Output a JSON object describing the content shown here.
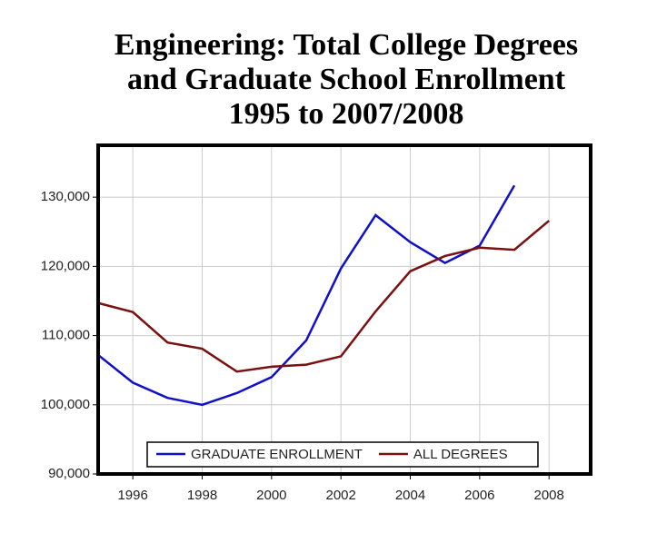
{
  "chart_data": {
    "type": "line",
    "title": [
      "Engineering: Total College Degrees",
      "and Graduate School Enrollment",
      "1995 to 2007/2008"
    ],
    "x": [
      1995,
      1996,
      1997,
      1998,
      1999,
      2000,
      2001,
      2002,
      2003,
      2004,
      2005,
      2006,
      2007,
      2008
    ],
    "series": [
      {
        "name": "GRADUATE ENROLLMENT",
        "color": "#1010c8",
        "values": [
          107200,
          103200,
          101000,
          100000,
          101700,
          104000,
          109300,
          119700,
          127400,
          123500,
          120500,
          123000,
          131700,
          null
        ]
      },
      {
        "name": "ALL DEGREES",
        "color": "#7a1010",
        "values": [
          114700,
          113400,
          109000,
          108100,
          104800,
          105500,
          105800,
          107000,
          113500,
          119300,
          121500,
          122700,
          122400,
          126600
        ]
      }
    ],
    "xlim": [
      1995,
      2009.2
    ],
    "xticks": [
      1996,
      1998,
      2000,
      2002,
      2004,
      2006,
      2008
    ],
    "ylim": [
      90000,
      137500
    ],
    "yticks": [
      {
        "value": 90000,
        "label": "90,000"
      },
      {
        "value": 100000,
        "label": "100,000"
      },
      {
        "value": 110000,
        "label": "110,000"
      },
      {
        "value": 120000,
        "label": "120,000"
      },
      {
        "value": 130000,
        "label": "130,000"
      }
    ],
    "grid": true,
    "legend": "bottom"
  }
}
